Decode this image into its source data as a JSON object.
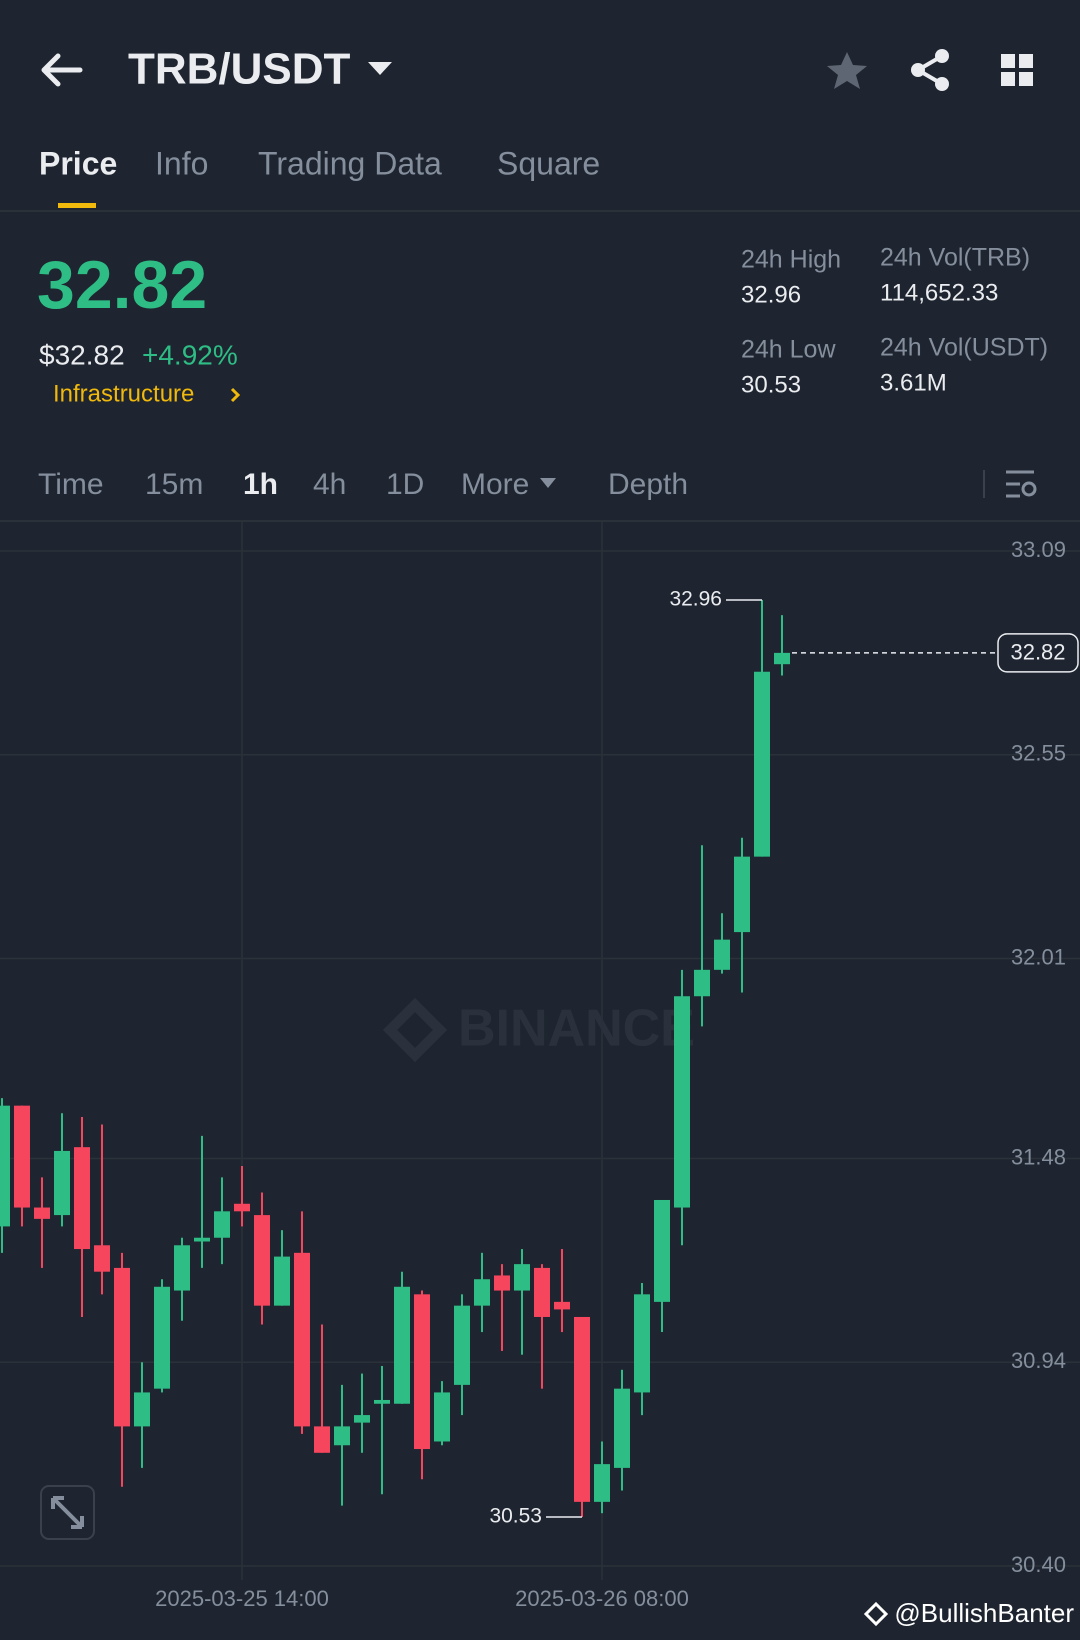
{
  "header": {
    "title": "TRB/USDT"
  },
  "tabs": [
    "Price",
    "Info",
    "Trading Data",
    "Square"
  ],
  "ticker": {
    "last": "32.82",
    "fiat": "$32.82",
    "change": "+4.92%",
    "tag": "Infrastructure",
    "stats": [
      {
        "label": "24h High",
        "value": "32.96"
      },
      {
        "label": "24h Vol(TRB)",
        "value": "114,652.33"
      },
      {
        "label": "24h Low",
        "value": "30.53"
      },
      {
        "label": "24h Vol(USDT)",
        "value": "3.61M"
      }
    ]
  },
  "intervals": [
    "Time",
    "15m",
    "1h",
    "4h",
    "1D",
    "More",
    "Depth"
  ],
  "chart_data": {
    "type": "candlestick",
    "categories": [
      null,
      null,
      null,
      null,
      null,
      null,
      null,
      null,
      null,
      null,
      null,
      null,
      "2025-03-25 14:00",
      null,
      null,
      null,
      null,
      null,
      null,
      null,
      null,
      null,
      null,
      null,
      null,
      null,
      null,
      null,
      null,
      null,
      "2025-03-26 08:00",
      null,
      null,
      null,
      null,
      null,
      null,
      null,
      null,
      null
    ],
    "open": [
      31.3,
      31.62,
      31.35,
      31.33,
      31.51,
      31.25,
      31.19,
      30.77,
      30.87,
      31.13,
      31.26,
      31.27,
      31.36,
      31.33,
      31.09,
      31.23,
      30.77,
      30.72,
      30.78,
      30.83,
      30.83,
      31.12,
      30.73,
      30.88,
      31.09,
      31.17,
      31.13,
      31.19,
      31.1,
      31.06,
      30.57,
      30.66,
      30.86,
      31.1,
      31.35,
      31.91,
      31.98,
      32.08,
      32.28,
      32.79
    ],
    "high": [
      31.64,
      31.62,
      31.43,
      31.6,
      31.59,
      31.57,
      31.23,
      30.94,
      31.16,
      31.27,
      31.54,
      31.43,
      31.46,
      31.39,
      31.29,
      31.34,
      31.04,
      30.88,
      30.91,
      30.93,
      31.18,
      31.13,
      30.89,
      31.12,
      31.23,
      31.2,
      31.24,
      31.2,
      31.24,
      31.06,
      30.73,
      30.92,
      31.15,
      31.37,
      31.98,
      32.31,
      32.13,
      32.33,
      32.96,
      32.92
    ],
    "low": [
      31.23,
      31.3,
      31.19,
      31.3,
      31.06,
      31.12,
      30.61,
      30.66,
      30.86,
      31.05,
      31.19,
      31.2,
      31.3,
      31.04,
      31.09,
      30.75,
      30.7,
      30.56,
      30.7,
      30.59,
      30.83,
      30.63,
      30.72,
      30.8,
      31.02,
      30.97,
      30.96,
      30.87,
      31.02,
      30.53,
      30.54,
      30.6,
      30.8,
      31.02,
      31.25,
      31.83,
      31.97,
      31.92,
      32.28,
      32.76
    ],
    "close": [
      31.62,
      31.35,
      31.32,
      31.5,
      31.24,
      31.18,
      30.77,
      30.86,
      31.14,
      31.25,
      31.27,
      31.34,
      31.34,
      31.09,
      31.22,
      30.77,
      30.7,
      30.77,
      30.8,
      30.84,
      31.14,
      30.71,
      30.86,
      31.09,
      31.16,
      31.13,
      31.2,
      31.06,
      31.08,
      30.57,
      30.67,
      30.87,
      31.12,
      31.37,
      31.91,
      31.98,
      32.06,
      32.28,
      32.77,
      32.82
    ],
    "up_color": "#2ebd85",
    "down_color": "#f6465d",
    "ylim": [
      30.4,
      33.09
    ],
    "yticks": [
      33.09,
      32.55,
      32.01,
      31.48,
      30.94,
      {
        "value": 30.4,
        "label": "30.40"
      }
    ],
    "grid": true,
    "high_marker": 32.96,
    "low_marker": 30.53,
    "last_price": 32.82,
    "watermark": "BINANCE",
    "credit": "@BullishBanter"
  }
}
